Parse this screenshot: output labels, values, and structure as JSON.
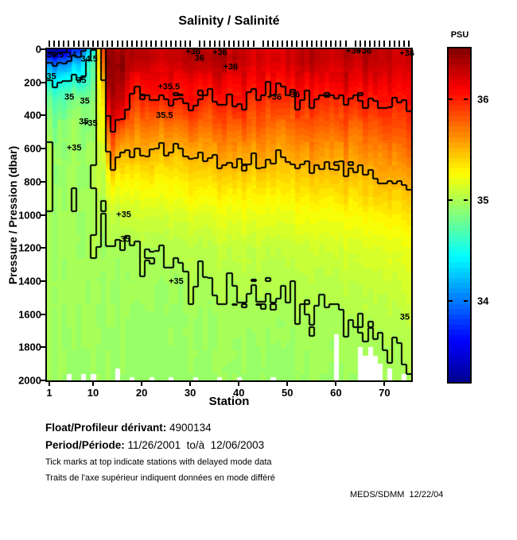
{
  "title": "Salinity / Salinité",
  "axes": {
    "y_label": "Pressure / Pression (dbar)",
    "x_label": "Station",
    "y_ticks": [
      0,
      200,
      400,
      600,
      800,
      1000,
      1200,
      1400,
      1600,
      1800,
      2000
    ],
    "x_ticks": [
      1,
      10,
      20,
      30,
      40,
      50,
      60,
      70
    ]
  },
  "colorbar": {
    "label": "PSU",
    "ticks": [
      34,
      35,
      36
    ],
    "range": [
      33.2,
      36.5
    ],
    "colormap": "jet"
  },
  "footer": {
    "float_label": "Float/Profileur dérivant:",
    "float_value": " 4900134",
    "period_label": "Period/Période:",
    "period_value": " 11/26/2001  to/à  12/06/2003",
    "note_en": "Tick marks at top indicate stations with delayed mode data",
    "note_fr": "Traits de l'axe supérieur indiquent données en mode différé",
    "credit": "MEDS/SDMM  12/22/04"
  },
  "chart_data": {
    "type": "heatmap",
    "title": "Salinity / Salinité",
    "xlabel": "Station",
    "ylabel": "Pressure / Pression (dbar)",
    "x_range": [
      1,
      75
    ],
    "y_range": [
      0,
      2000
    ],
    "y_inverted": true,
    "value_units": "PSU",
    "value_range": [
      33.2,
      36.5
    ],
    "colormap": "jet",
    "contour_levels": [
      33.5,
      34,
      34.5,
      35,
      35.5,
      36
    ],
    "pressures": [
      0,
      50,
      100,
      200,
      300,
      400,
      500,
      600,
      800,
      1000,
      1200,
      1400,
      1600,
      1800,
      2000
    ],
    "sample_stations": [
      1,
      4,
      7,
      10,
      11,
      12,
      13,
      14,
      16,
      18,
      20,
      23,
      26,
      30,
      34,
      38,
      42,
      46,
      50,
      54,
      58,
      62,
      66,
      70,
      73,
      75
    ],
    "grid": [
      [
        33.3,
        33.4,
        33.8,
        34.4,
        35.3,
        35.9,
        36.35,
        36.35,
        36.3,
        36.3,
        36.3,
        36.25,
        36.3,
        36.3,
        36.3,
        36.25,
        36.2,
        36.15,
        36.25,
        36.25,
        36.3,
        36.35,
        36.35,
        36.3,
        36.3,
        36.25
      ],
      [
        33.7,
        33.8,
        34.1,
        34.55,
        35.3,
        35.85,
        36.4,
        36.4,
        36.35,
        36.3,
        36.3,
        36.3,
        36.3,
        36.3,
        36.35,
        36.3,
        36.25,
        36.2,
        36.3,
        36.3,
        36.3,
        36.35,
        36.35,
        36.3,
        36.3,
        36.3
      ],
      [
        34.1,
        34.15,
        34.35,
        34.65,
        35.25,
        35.75,
        36.4,
        36.4,
        36.4,
        36.25,
        36.25,
        36.2,
        36.25,
        36.25,
        36.3,
        36.25,
        36.2,
        36.15,
        36.25,
        36.25,
        36.25,
        36.3,
        36.3,
        36.28,
        36.28,
        36.25
      ],
      [
        34.5,
        34.5,
        34.6,
        34.75,
        35.2,
        35.55,
        36.35,
        36.4,
        36.35,
        36.1,
        36.1,
        36.1,
        36.15,
        36.1,
        36.15,
        36.1,
        36.1,
        36.05,
        36.12,
        36.12,
        36.15,
        36.18,
        36.18,
        36.15,
        36.18,
        36.15
      ],
      [
        34.75,
        34.75,
        34.9,
        34.85,
        35.15,
        35.4,
        36.1,
        36.35,
        36.2,
        35.95,
        35.95,
        36.0,
        36.05,
        36.0,
        36.0,
        36.0,
        35.98,
        35.95,
        36.0,
        36.0,
        36.02,
        36.05,
        36.05,
        36.05,
        36.08,
        36.05
      ],
      [
        34.85,
        34.85,
        35.0,
        34.9,
        35.12,
        35.3,
        35.9,
        36.25,
        36.0,
        35.8,
        35.8,
        35.82,
        35.85,
        35.85,
        35.85,
        35.86,
        35.85,
        35.83,
        35.86,
        35.87,
        35.9,
        35.92,
        35.92,
        35.93,
        35.95,
        35.95
      ],
      [
        34.9,
        34.9,
        34.95,
        34.92,
        35.1,
        35.2,
        35.6,
        36.0,
        35.7,
        35.65,
        35.65,
        35.66,
        35.68,
        35.7,
        35.7,
        35.72,
        35.72,
        35.7,
        35.73,
        35.74,
        35.76,
        35.78,
        35.8,
        35.82,
        35.84,
        35.85
      ],
      [
        34.93,
        34.93,
        34.95,
        34.94,
        35.08,
        35.15,
        35.45,
        35.7,
        35.5,
        35.5,
        35.5,
        35.52,
        35.54,
        35.55,
        35.56,
        35.58,
        35.58,
        35.57,
        35.6,
        35.61,
        35.63,
        35.65,
        35.68,
        35.7,
        35.72,
        35.74
      ],
      [
        34.96,
        34.96,
        34.97,
        34.96,
        35.03,
        35.05,
        35.2,
        35.3,
        35.25,
        35.3,
        35.3,
        35.3,
        35.32,
        35.33,
        35.35,
        35.36,
        35.37,
        35.37,
        35.4,
        35.41,
        35.43,
        35.45,
        35.48,
        35.5,
        35.52,
        35.54
      ],
      [
        34.97,
        34.97,
        34.98,
        34.97,
        35.0,
        35.0,
        35.02,
        35.05,
        35.05,
        35.1,
        35.12,
        35.12,
        35.14,
        35.15,
        35.17,
        35.18,
        35.2,
        35.2,
        35.22,
        35.23,
        35.25,
        35.27,
        35.3,
        35.32,
        35.34,
        35.36
      ],
      [
        34.97,
        34.97,
        34.97,
        34.97,
        34.97,
        34.97,
        34.97,
        34.98,
        34.98,
        35.0,
        35.0,
        35.02,
        35.03,
        35.04,
        35.05,
        35.06,
        35.07,
        35.08,
        35.09,
        35.1,
        35.12,
        35.14,
        35.16,
        35.18,
        35.2,
        35.22
      ],
      [
        34.97,
        34.97,
        34.96,
        34.96,
        34.95,
        34.95,
        34.95,
        34.95,
        34.95,
        34.96,
        34.97,
        34.97,
        34.98,
        34.99,
        35.0,
        35.0,
        35.01,
        35.02,
        35.03,
        35.04,
        35.05,
        35.07,
        35.09,
        35.1,
        35.12,
        35.14
      ],
      [
        34.96,
        34.96,
        34.96,
        34.96,
        34.95,
        34.95,
        34.94,
        34.94,
        34.94,
        34.95,
        34.95,
        34.95,
        34.95,
        34.96,
        34.96,
        34.97,
        34.97,
        34.98,
        34.98,
        34.99,
        35.0,
        35.01,
        35.03,
        35.04,
        35.06,
        35.08
      ],
      [
        34.96,
        34.96,
        34.95,
        34.95,
        34.94,
        34.94,
        34.94,
        34.94,
        34.94,
        34.94,
        34.94,
        34.94,
        34.94,
        34.94,
        34.95,
        34.95,
        34.95,
        34.95,
        34.96,
        34.96,
        34.97,
        34.98,
        34.99,
        35.0,
        35.01,
        35.02
      ],
      [
        34.95,
        34.95,
        34.95,
        34.94,
        34.94,
        34.94,
        34.93,
        34.93,
        34.93,
        34.93,
        34.93,
        34.93,
        34.93,
        34.93,
        34.94,
        34.94,
        34.94,
        34.94,
        34.94,
        34.95,
        34.95,
        34.96,
        34.96,
        34.97,
        34.98,
        34.99
      ]
    ],
    "missing_data_blocks": [
      [
        5,
        1960,
        2000
      ],
      [
        8,
        1960,
        2000
      ],
      [
        10,
        1960,
        2000
      ],
      [
        15,
        1930,
        2000
      ],
      [
        18,
        1980,
        2000
      ],
      [
        22,
        1980,
        2000
      ],
      [
        26,
        1980,
        2000
      ],
      [
        31,
        1980,
        2000
      ],
      [
        36,
        1980,
        2000
      ],
      [
        40,
        1980,
        2000
      ],
      [
        47,
        1980,
        2000
      ],
      [
        60,
        1720,
        2000
      ],
      [
        65,
        1800,
        2000
      ],
      [
        66,
        1850,
        2000
      ],
      [
        67,
        1800,
        2000
      ],
      [
        68,
        1850,
        2000
      ],
      [
        69,
        1900,
        2000
      ],
      [
        71,
        1930,
        2000
      ],
      [
        74,
        1960,
        2000
      ]
    ],
    "delayed_ticks_missing": [
      31,
      44,
      63
    ],
    "contour_labels": [
      {
        "t": "33.5",
        "s": 2.2,
        "p": 40
      },
      {
        "t": "34",
        "s": 5.6,
        "p": 38
      },
      {
        "t": "34.5",
        "s": 9.2,
        "p": 62
      },
      {
        "t": "35",
        "s": 1.4,
        "p": 170
      },
      {
        "t": "35",
        "s": 7.6,
        "p": 190
      },
      {
        "t": "35",
        "s": 5.1,
        "p": 292
      },
      {
        "t": "35",
        "s": 8.3,
        "p": 318
      },
      {
        "t": "35",
        "s": 8.1,
        "p": 440
      },
      {
        "t": "35",
        "s": 9.4,
        "p": 452,
        "plus": true
      },
      {
        "t": "35",
        "s": 6.1,
        "p": 600,
        "plus": true
      },
      {
        "t": "35",
        "s": 16.3,
        "p": 1000,
        "plus": true
      },
      {
        "t": "35",
        "s": 16.6,
        "p": 1150
      },
      {
        "t": "35",
        "s": 27.1,
        "p": 1405,
        "plus": true
      },
      {
        "t": "35",
        "s": 74.2,
        "p": 1620
      },
      {
        "t": "35.5",
        "s": 25.6,
        "p": 232,
        "plus": true
      },
      {
        "t": "35.5",
        "s": 24.7,
        "p": 405
      },
      {
        "t": "36",
        "s": 30.6,
        "p": 18,
        "plus": true
      },
      {
        "t": "36",
        "s": 36.1,
        "p": 22,
        "plus": true
      },
      {
        "t": "36",
        "s": 31.9,
        "p": 58
      },
      {
        "t": "36",
        "s": 38.3,
        "p": 108,
        "plus": true
      },
      {
        "t": "36",
        "s": 47.3,
        "p": 292,
        "plus": true
      },
      {
        "t": "36",
        "s": 51.6,
        "p": 278
      },
      {
        "t": "36",
        "s": 63.6,
        "p": 12,
        "plus": true
      },
      {
        "t": "36",
        "s": 65.8,
        "p": 16,
        "plus": true
      },
      {
        "t": "36",
        "s": 74.6,
        "p": 28,
        "plus": true
      }
    ]
  }
}
